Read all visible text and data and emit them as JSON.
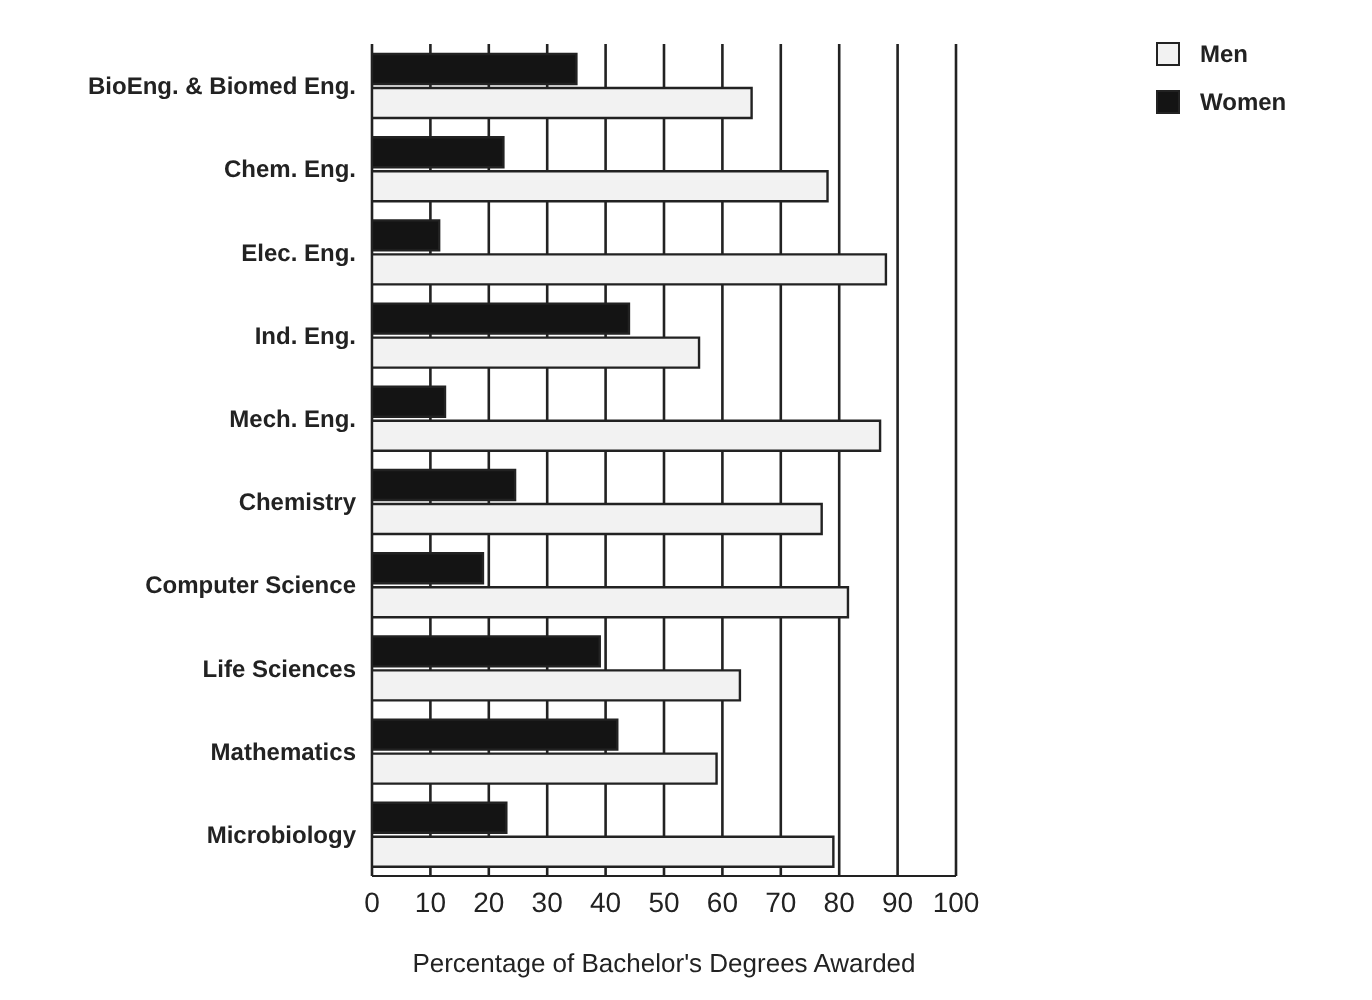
{
  "chart_data": {
    "type": "bar",
    "orientation": "horizontal",
    "xlabel": "Percentage of Bachelor's Degrees Awarded",
    "categories": [
      "BioEng. & Biomed Eng.",
      "Chem. Eng.",
      "Elec. Eng.",
      "Ind. Eng.",
      "Mech. Eng.",
      "Chemistry",
      "Computer Science",
      "Life Sciences",
      "Mathematics",
      "Microbiology"
    ],
    "series": [
      {
        "name": "Women",
        "color": "#141414",
        "values": [
          35,
          22.5,
          11.5,
          44,
          12.5,
          24.5,
          19,
          39,
          42,
          23
        ]
      },
      {
        "name": "Men",
        "color": "#f2f2f2",
        "values": [
          65,
          78,
          88,
          56,
          87,
          77,
          81.5,
          63,
          59,
          79
        ]
      }
    ],
    "xlim": [
      0,
      100
    ],
    "xticks": [
      0,
      10,
      20,
      30,
      40,
      50,
      60,
      70,
      80,
      90,
      100
    ],
    "grid": "x",
    "legend": "top right"
  }
}
